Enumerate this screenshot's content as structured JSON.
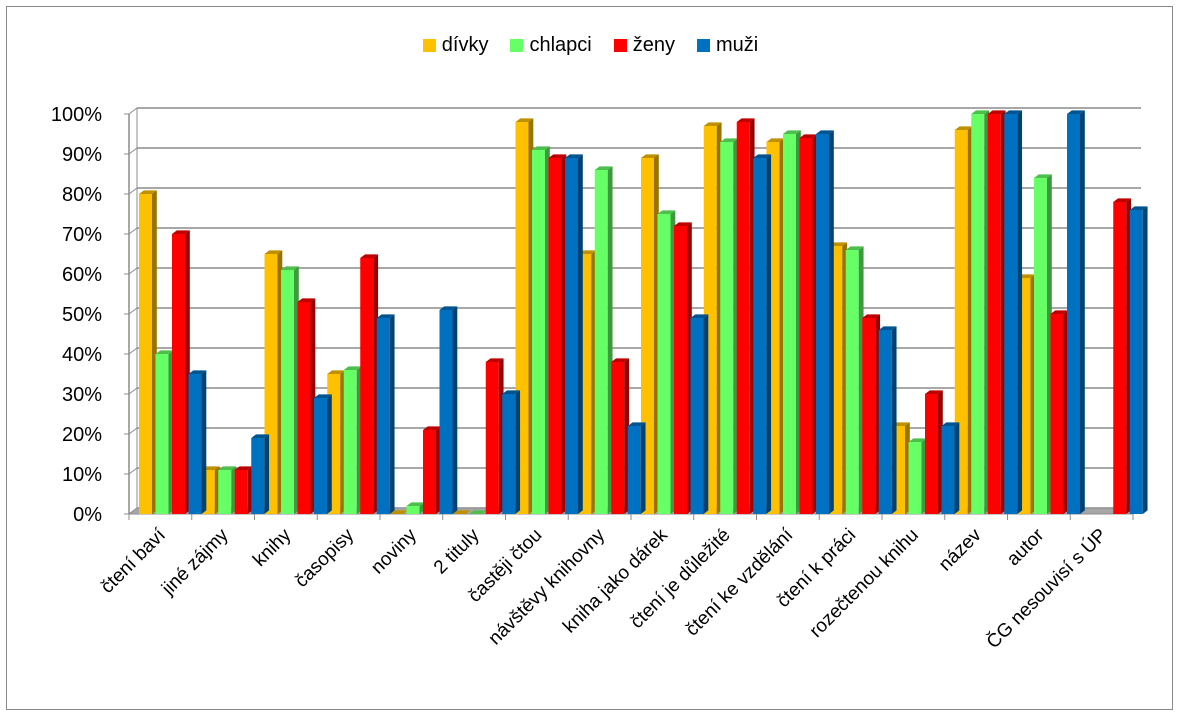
{
  "chart_data": {
    "type": "bar",
    "categories": [
      "čtení baví",
      "jiné zájmy",
      "knihy",
      "časopisy",
      "noviny",
      "2 tituly",
      "častěji čtou",
      "návštěvy knihovny",
      "kniha jako dárek",
      "čtení je důležité",
      "čtení ke vzdělání",
      "čtení k práci",
      "rozečtenou knihu",
      "název",
      "autor",
      "ČG nesouvisí s ÚP"
    ],
    "series": [
      {
        "name": "dívky",
        "color": "#FFC000",
        "values": [
          80,
          11,
          65,
          35,
          0,
          0,
          98,
          65,
          89,
          97,
          93,
          67,
          22,
          96,
          59,
          null
        ]
      },
      {
        "name": "chlapci",
        "color": "#66FF66",
        "values": [
          40,
          11,
          61,
          36,
          2,
          0,
          91,
          86,
          75,
          93,
          95,
          66,
          18,
          100,
          84,
          null
        ]
      },
      {
        "name": "ženy",
        "color": "#FF0000",
        "values": [
          70,
          11,
          53,
          64,
          21,
          38,
          89,
          38,
          72,
          98,
          94,
          49,
          30,
          100,
          50,
          78
        ]
      },
      {
        "name": "muži",
        "color": "#0070C0",
        "values": [
          35,
          19,
          29,
          49,
          51,
          30,
          89,
          22,
          49,
          89,
          95,
          46,
          22,
          100,
          100,
          76
        ]
      }
    ],
    "yticks": [
      "0%",
      "10%",
      "20%",
      "30%",
      "40%",
      "50%",
      "60%",
      "70%",
      "80%",
      "90%",
      "100%"
    ],
    "ylim": [
      0,
      100
    ],
    "legend_position": "top",
    "grid": true
  }
}
